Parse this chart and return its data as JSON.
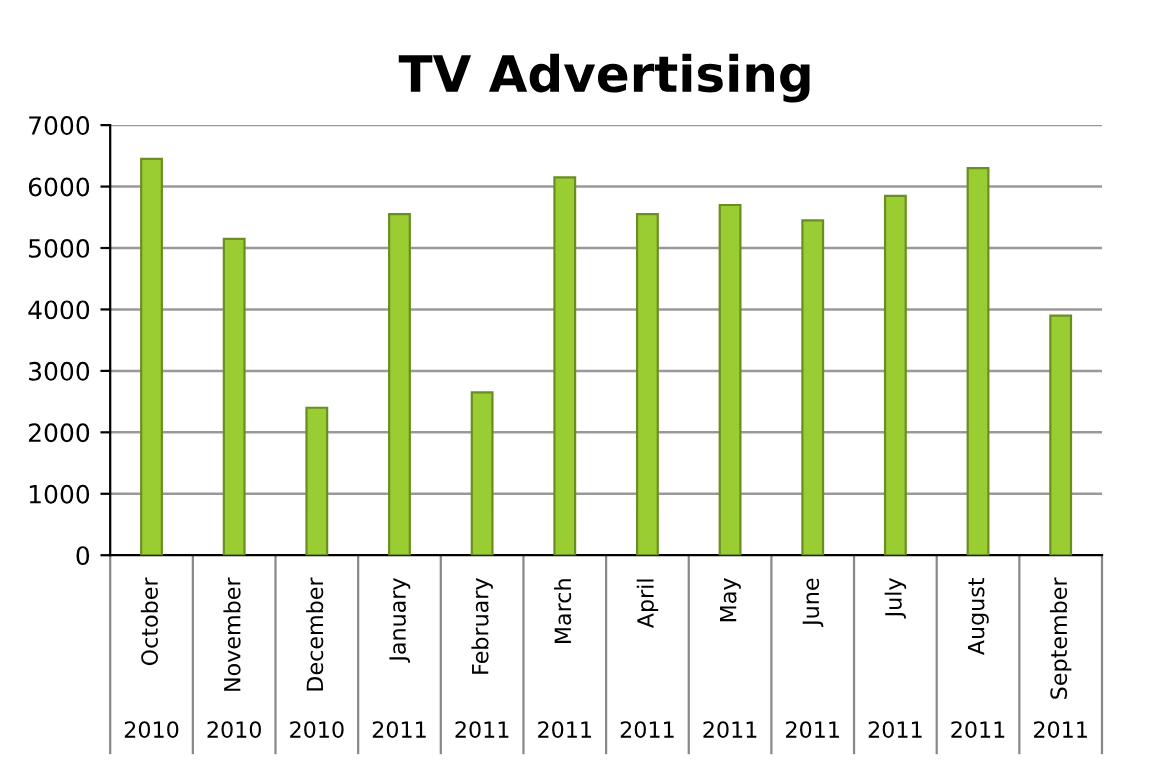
{
  "chart_data": {
    "type": "bar",
    "title": "TV Advertising",
    "categories": [
      "October",
      "November",
      "December",
      "January",
      "February",
      "March",
      "April",
      "May",
      "June",
      "July",
      "August",
      "September"
    ],
    "annotations": [
      "2010",
      "2010",
      "2010",
      "2011",
      "2011",
      "2011",
      "2011",
      "2011",
      "2011",
      "2011",
      "2011",
      "2011"
    ],
    "values": [
      6450,
      5150,
      2400,
      5550,
      2650,
      6150,
      5550,
      5700,
      5450,
      5850,
      6300,
      3900
    ],
    "color": "#9acd32",
    "ylim": [
      0,
      7000
    ],
    "yticks": [
      0,
      1000,
      2000,
      3000,
      4000,
      5000,
      6000,
      7000
    ],
    "grid": "y"
  }
}
